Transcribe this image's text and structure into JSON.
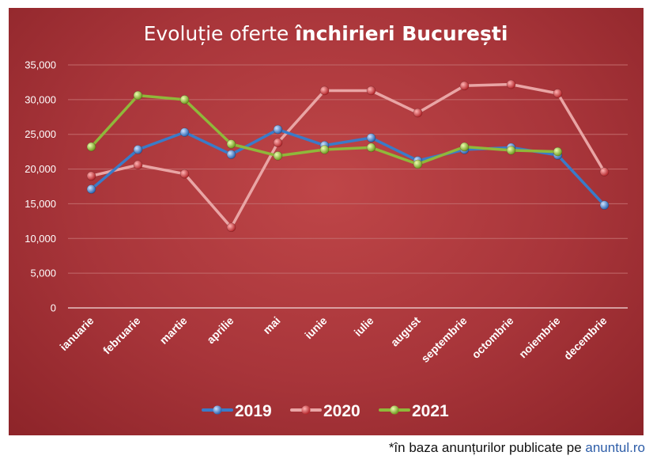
{
  "chart_data": {
    "type": "line",
    "title_regular": "Evoluție oferte ",
    "title_bold": "închirieri București",
    "categories": [
      "ianuarie",
      "februarie",
      "martie",
      "aprilie",
      "mai",
      "iunie",
      "iulie",
      "august",
      "septembrie",
      "octombrie",
      "noiembrie",
      "decembrie"
    ],
    "ylim": [
      0,
      35000
    ],
    "y_ticks": [
      "0",
      "5,000",
      "10,000",
      "15,000",
      "20,000",
      "25,000",
      "30,000",
      "35,000"
    ],
    "grid": true,
    "legend_position": "bottom",
    "series": [
      {
        "name": "2019",
        "color": "#3a7bc8",
        "values": [
          17100,
          22800,
          25300,
          22100,
          25700,
          23400,
          24500,
          21200,
          22800,
          23100,
          22000,
          14800
        ]
      },
      {
        "name": "2020",
        "color": "#e9a5a5",
        "values": [
          19000,
          20600,
          19300,
          11600,
          23800,
          31300,
          31300,
          28100,
          32000,
          32200,
          30900,
          19600
        ]
      },
      {
        "name": "2021",
        "color": "#8fb83a",
        "values": [
          23200,
          30600,
          30000,
          23600,
          21900,
          22800,
          23100,
          20700,
          23200,
          22700,
          22500,
          null
        ]
      }
    ]
  },
  "footnote": {
    "text": "*în baza anunțurilor publicate pe ",
    "link": "anuntul.ro"
  }
}
